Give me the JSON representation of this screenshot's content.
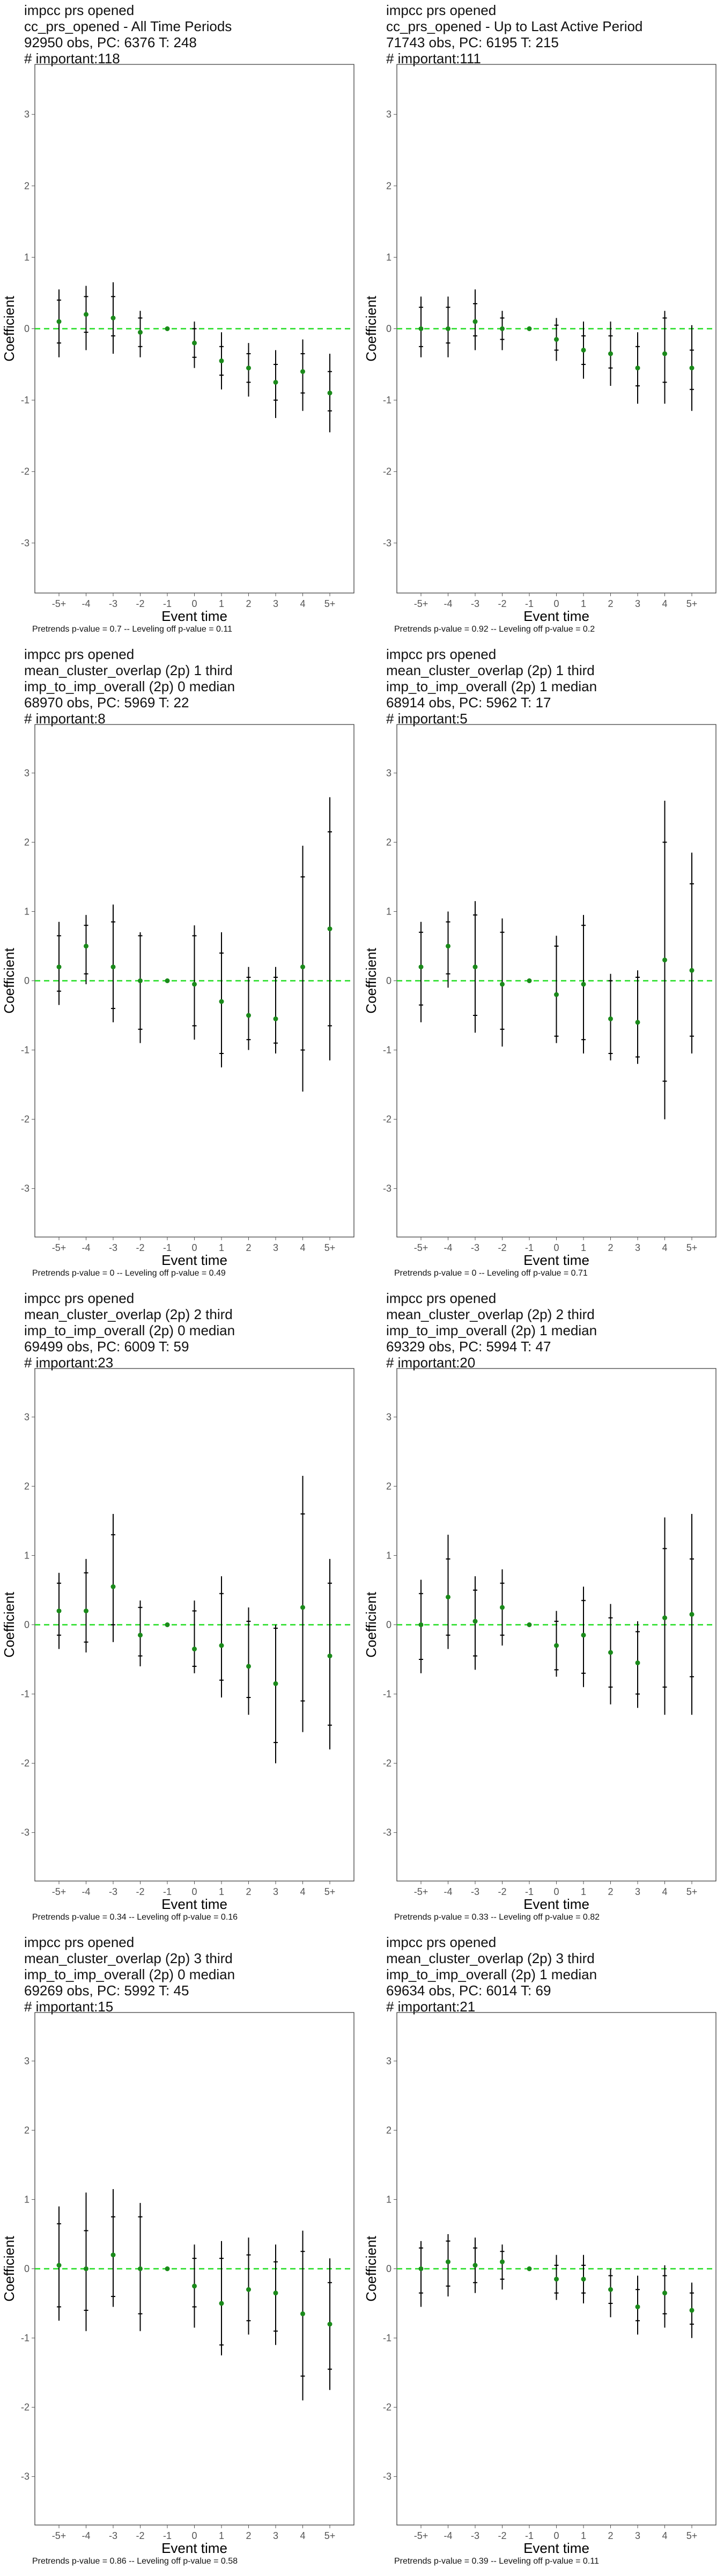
{
  "chart_data": [
    {
      "type": "scatter",
      "title_lines": [
        "impcc prs opened",
        "cc_prs_opened - All Time Periods",
        "92950 obs, PC: 6376 T: 248",
        "# important:118"
      ],
      "xlabel": "Event time",
      "ylabel": "Coefficient",
      "ylim": [
        -3.7,
        3.7
      ],
      "x": [
        "-5+",
        "-4",
        "-3",
        "-2",
        "-1",
        "0",
        "1",
        "2",
        "3",
        "4",
        "5+"
      ],
      "y_ticks": [
        "-3",
        "-2",
        "-1",
        "0",
        "1",
        "2",
        "3"
      ],
      "series": [
        {
          "point": [
            0.1,
            0.2,
            0.15,
            -0.05,
            0,
            -0.2,
            -0.45,
            -0.55,
            -0.75,
            -0.6,
            -0.9
          ],
          "ci_outer_low": [
            -0.4,
            -0.3,
            -0.35,
            -0.4,
            0,
            -0.55,
            -0.85,
            -0.95,
            -1.25,
            -1.15,
            -1.45
          ],
          "ci_outer_high": [
            0.55,
            0.6,
            0.65,
            0.25,
            0,
            0.1,
            -0.05,
            -0.2,
            -0.3,
            -0.15,
            -0.35
          ],
          "ci_inner_low": [
            -0.2,
            -0.05,
            -0.1,
            -0.25,
            0,
            -0.4,
            -0.65,
            -0.75,
            -1.0,
            -0.9,
            -1.15
          ],
          "ci_inner_high": [
            0.4,
            0.45,
            0.45,
            0.15,
            0,
            0.0,
            -0.25,
            -0.35,
            -0.5,
            -0.35,
            -0.6
          ]
        }
      ],
      "footer": "Pretrends p-value = 0.7 -- Leveling off p-value = 0.11"
    },
    {
      "type": "scatter",
      "title_lines": [
        "impcc prs opened",
        "cc_prs_opened - Up to Last Active Period",
        "71743 obs, PC: 6195 T: 215",
        "# important:111"
      ],
      "xlabel": "Event time",
      "ylabel": "Coefficient",
      "ylim": [
        -3.7,
        3.7
      ],
      "x": [
        "-5+",
        "-4",
        "-3",
        "-2",
        "-1",
        "0",
        "1",
        "2",
        "3",
        "4",
        "5+"
      ],
      "y_ticks": [
        "-3",
        "-2",
        "-1",
        "0",
        "1",
        "2",
        "3"
      ],
      "series": [
        {
          "point": [
            0.0,
            0.0,
            0.1,
            0.0,
            0,
            -0.15,
            -0.3,
            -0.35,
            -0.55,
            -0.35,
            -0.55
          ],
          "ci_outer_low": [
            -0.4,
            -0.4,
            -0.3,
            -0.3,
            0,
            -0.45,
            -0.7,
            -0.8,
            -1.05,
            -1.05,
            -1.15
          ],
          "ci_outer_high": [
            0.45,
            0.45,
            0.55,
            0.25,
            0,
            0.15,
            0.1,
            0.1,
            -0.05,
            0.25,
            0.05
          ],
          "ci_inner_low": [
            -0.25,
            -0.2,
            -0.1,
            -0.15,
            0,
            -0.3,
            -0.5,
            -0.55,
            -0.8,
            -0.75,
            -0.85
          ],
          "ci_inner_high": [
            0.3,
            0.3,
            0.35,
            0.15,
            0,
            0.05,
            -0.1,
            -0.1,
            -0.25,
            0.15,
            -0.3
          ]
        }
      ],
      "footer": "Pretrends p-value = 0.92 -- Leveling off p-value = 0.2"
    },
    {
      "type": "scatter",
      "title_lines": [
        "impcc prs opened",
        "mean_cluster_overlap (2p) 1 third",
        "imp_to_imp_overall (2p) 0 median",
        "68970 obs, PC: 5969 T: 22",
        "# important:8"
      ],
      "xlabel": "Event time",
      "ylabel": "Coefficient",
      "ylim": [
        -3.7,
        3.7
      ],
      "x": [
        "-5+",
        "-4",
        "-3",
        "-2",
        "-1",
        "0",
        "1",
        "2",
        "3",
        "4",
        "5+"
      ],
      "y_ticks": [
        "-3",
        "-2",
        "-1",
        "0",
        "1",
        "2",
        "3"
      ],
      "series": [
        {
          "point": [
            0.2,
            0.5,
            0.2,
            0.0,
            0,
            -0.05,
            -0.3,
            -0.5,
            -0.55,
            0.2,
            0.75
          ],
          "ci_outer_low": [
            -0.35,
            -0.05,
            -0.6,
            -0.9,
            0,
            -0.85,
            -1.25,
            -1.0,
            -1.05,
            -1.6,
            -1.15
          ],
          "ci_outer_high": [
            0.85,
            0.95,
            1.1,
            0.7,
            0,
            0.8,
            0.7,
            0.2,
            0.2,
            1.95,
            2.65
          ],
          "ci_inner_low": [
            -0.15,
            0.1,
            -0.4,
            -0.7,
            0,
            -0.65,
            -1.05,
            -0.85,
            -0.9,
            -1.0,
            -0.65
          ],
          "ci_inner_high": [
            0.65,
            0.8,
            0.85,
            0.65,
            0,
            0.65,
            0.4,
            0.05,
            0.05,
            1.5,
            2.15
          ]
        }
      ],
      "footer": "Pretrends p-value = 0 -- Leveling off p-value = 0.49"
    },
    {
      "type": "scatter",
      "title_lines": [
        "impcc prs opened",
        "mean_cluster_overlap (2p) 1 third",
        "imp_to_imp_overall (2p) 1 median",
        "68914 obs, PC: 5962 T: 17",
        "# important:5"
      ],
      "xlabel": "Event time",
      "ylabel": "Coefficient",
      "ylim": [
        -3.7,
        3.7
      ],
      "x": [
        "-5+",
        "-4",
        "-3",
        "-2",
        "-1",
        "0",
        "1",
        "2",
        "3",
        "4",
        "5+"
      ],
      "y_ticks": [
        "-3",
        "-2",
        "-1",
        "0",
        "1",
        "2",
        "3"
      ],
      "series": [
        {
          "point": [
            0.2,
            0.5,
            0.2,
            -0.05,
            0,
            -0.2,
            -0.05,
            -0.55,
            -0.6,
            0.3,
            0.15
          ],
          "ci_outer_low": [
            -0.6,
            -0.1,
            -0.75,
            -0.95,
            0,
            -0.9,
            -1.05,
            -1.15,
            -1.2,
            -2.0,
            -1.05
          ],
          "ci_outer_high": [
            0.85,
            1.0,
            1.15,
            0.9,
            0,
            0.65,
            0.95,
            0.1,
            0.15,
            2.6,
            1.85
          ],
          "ci_inner_low": [
            -0.35,
            0.1,
            -0.5,
            -0.7,
            0,
            -0.8,
            -0.85,
            -1.05,
            -1.1,
            -1.45,
            -0.8
          ],
          "ci_inner_high": [
            0.7,
            0.85,
            0.95,
            0.7,
            0,
            0.5,
            0.8,
            0.0,
            0.05,
            2.0,
            1.4
          ]
        }
      ],
      "footer": "Pretrends p-value = 0 -- Leveling off p-value = 0.71"
    },
    {
      "type": "scatter",
      "title_lines": [
        "impcc prs opened",
        "mean_cluster_overlap (2p) 2 third",
        "imp_to_imp_overall (2p) 0 median",
        "69499 obs, PC: 6009 T: 59",
        "# important:23"
      ],
      "xlabel": "Event time",
      "ylabel": "Coefficient",
      "ylim": [
        -3.7,
        3.7
      ],
      "x": [
        "-5+",
        "-4",
        "-3",
        "-2",
        "-1",
        "0",
        "1",
        "2",
        "3",
        "4",
        "5+"
      ],
      "y_ticks": [
        "-3",
        "-2",
        "-1",
        "0",
        "1",
        "2",
        "3"
      ],
      "series": [
        {
          "point": [
            0.2,
            0.2,
            0.55,
            -0.15,
            0,
            -0.35,
            -0.3,
            -0.6,
            -0.85,
            0.25,
            -0.45
          ],
          "ci_outer_low": [
            -0.35,
            -0.4,
            -0.25,
            -0.6,
            0,
            -0.7,
            -1.05,
            -1.3,
            -2.0,
            -1.55,
            -1.8
          ],
          "ci_outer_high": [
            0.75,
            0.95,
            1.6,
            0.35,
            0,
            0.35,
            0.7,
            0.25,
            0.0,
            2.15,
            0.95
          ],
          "ci_inner_low": [
            -0.15,
            -0.25,
            0.0,
            -0.45,
            0,
            -0.6,
            -0.8,
            -1.05,
            -1.7,
            -1.1,
            -1.45
          ],
          "ci_inner_high": [
            0.6,
            0.75,
            1.3,
            0.25,
            0,
            0.2,
            0.45,
            0.05,
            -0.05,
            1.6,
            0.6
          ]
        }
      ],
      "footer": "Pretrends p-value = 0.34 -- Leveling off p-value = 0.16"
    },
    {
      "type": "scatter",
      "title_lines": [
        "impcc prs opened",
        "mean_cluster_overlap (2p) 2 third",
        "imp_to_imp_overall (2p) 1 median",
        "69329 obs, PC: 5994 T: 47",
        "# important:20"
      ],
      "xlabel": "Event time",
      "ylabel": "Coefficient",
      "ylim": [
        -3.7,
        3.7
      ],
      "x": [
        "-5+",
        "-4",
        "-3",
        "-2",
        "-1",
        "0",
        "1",
        "2",
        "3",
        "4",
        "5+"
      ],
      "y_ticks": [
        "-3",
        "-2",
        "-1",
        "0",
        "1",
        "2",
        "3"
      ],
      "series": [
        {
          "point": [
            0.0,
            0.4,
            0.05,
            0.25,
            0,
            -0.3,
            -0.15,
            -0.4,
            -0.55,
            0.1,
            0.15
          ],
          "ci_outer_low": [
            -0.7,
            -0.35,
            -0.65,
            -0.3,
            0,
            -0.75,
            -0.9,
            -1.15,
            -1.2,
            -1.3,
            -1.3
          ],
          "ci_outer_high": [
            0.65,
            1.3,
            0.7,
            0.8,
            0,
            0.2,
            0.55,
            0.3,
            0.05,
            1.55,
            1.6
          ],
          "ci_inner_low": [
            -0.5,
            -0.15,
            -0.45,
            -0.15,
            0,
            -0.65,
            -0.7,
            -0.9,
            -1.0,
            -0.9,
            -0.75
          ],
          "ci_inner_high": [
            0.45,
            0.95,
            0.5,
            0.6,
            0,
            0.05,
            0.35,
            0.1,
            -0.1,
            1.1,
            0.95
          ]
        }
      ],
      "footer": "Pretrends p-value = 0.33 -- Leveling off p-value = 0.82"
    },
    {
      "type": "scatter",
      "title_lines": [
        "impcc prs opened",
        "mean_cluster_overlap (2p) 3 third",
        "imp_to_imp_overall (2p) 0 median",
        "69269 obs, PC: 5992 T: 45",
        "# important:15"
      ],
      "xlabel": "Event time",
      "ylabel": "Coefficient",
      "ylim": [
        -3.7,
        3.7
      ],
      "x": [
        "-5+",
        "-4",
        "-3",
        "-2",
        "-1",
        "0",
        "1",
        "2",
        "3",
        "4",
        "5+"
      ],
      "y_ticks": [
        "-3",
        "-2",
        "-1",
        "0",
        "1",
        "2",
        "3"
      ],
      "series": [
        {
          "point": [
            0.05,
            0.0,
            0.2,
            0.0,
            0,
            -0.25,
            -0.5,
            -0.3,
            -0.35,
            -0.65,
            -0.8
          ],
          "ci_outer_low": [
            -0.75,
            -0.9,
            -0.55,
            -0.9,
            0,
            -0.85,
            -1.25,
            -0.95,
            -1.1,
            -1.9,
            -1.75
          ],
          "ci_outer_high": [
            0.9,
            1.1,
            1.15,
            0.95,
            0,
            0.35,
            0.4,
            0.45,
            0.35,
            0.55,
            0.15
          ],
          "ci_inner_low": [
            -0.55,
            -0.6,
            -0.4,
            -0.65,
            0,
            -0.55,
            -1.1,
            -0.75,
            -0.9,
            -1.55,
            -1.45
          ],
          "ci_inner_high": [
            0.65,
            0.55,
            0.75,
            0.75,
            0,
            0.15,
            0.15,
            0.2,
            0.1,
            0.25,
            -0.2
          ]
        }
      ],
      "footer": "Pretrends p-value = 0.86 -- Leveling off p-value = 0.58"
    },
    {
      "type": "scatter",
      "title_lines": [
        "impcc prs opened",
        "mean_cluster_overlap (2p) 3 third",
        "imp_to_imp_overall (2p) 1 median",
        "69634 obs, PC: 6014 T: 69",
        "# important:21"
      ],
      "xlabel": "Event time",
      "ylabel": "Coefficient",
      "ylim": [
        -3.7,
        3.7
      ],
      "x": [
        "-5+",
        "-4",
        "-3",
        "-2",
        "-1",
        "0",
        "1",
        "2",
        "3",
        "4",
        "5+"
      ],
      "y_ticks": [
        "-3",
        "-2",
        "-1",
        "0",
        "1",
        "2",
        "3"
      ],
      "series": [
        {
          "point": [
            0.0,
            0.1,
            0.05,
            0.1,
            0,
            -0.15,
            -0.15,
            -0.3,
            -0.55,
            -0.35,
            -0.6
          ],
          "ci_outer_low": [
            -0.55,
            -0.4,
            -0.35,
            -0.3,
            0,
            -0.45,
            -0.5,
            -0.7,
            -0.95,
            -0.85,
            -1.0
          ],
          "ci_outer_high": [
            0.4,
            0.5,
            0.45,
            0.35,
            0,
            0.2,
            0.2,
            0.0,
            -0.1,
            0.05,
            -0.2
          ],
          "ci_inner_low": [
            -0.35,
            -0.25,
            -0.2,
            -0.15,
            0,
            -0.35,
            -0.35,
            -0.5,
            -0.75,
            -0.65,
            -0.8
          ],
          "ci_inner_high": [
            0.3,
            0.4,
            0.3,
            0.25,
            0,
            0.05,
            0.05,
            -0.1,
            -0.3,
            -0.1,
            -0.35
          ]
        }
      ],
      "footer": "Pretrends p-value = 0.39 -- Leveling off p-value = 0.11"
    }
  ],
  "colors": {
    "point": "#1a8a1a",
    "zero_line": "#22dd22",
    "error_bar": "#000000",
    "axis_border": "#333333",
    "tick_text": "#555555"
  }
}
